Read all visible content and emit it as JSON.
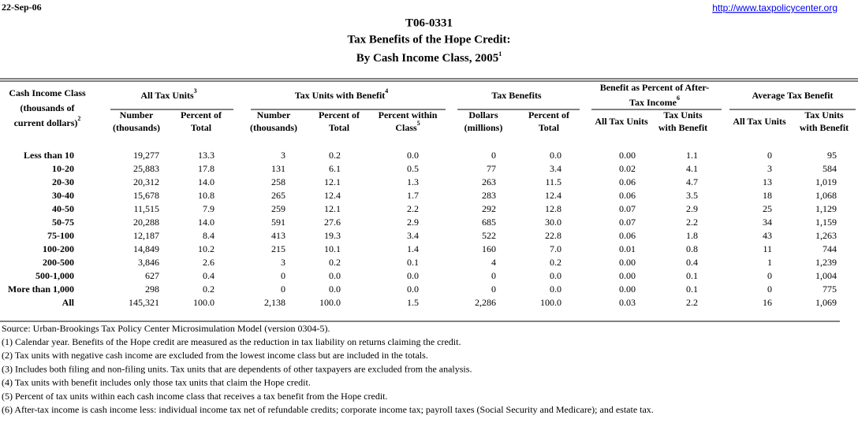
{
  "header": {
    "date": "22-Sep-06",
    "link": "http://www.taxpolicycenter.org",
    "code": "T06-0331",
    "title": "Tax Benefits of the Hope Credit:",
    "subtitle": "By Cash Income Class, 2005",
    "subtitle_note": "1"
  },
  "table": {
    "row_header": {
      "lines": [
        "Cash Income Class",
        "(thousands of",
        "current dollars)"
      ],
      "note": "2"
    },
    "groups": [
      {
        "lines": [
          "All Tax Units"
        ],
        "note": "3"
      },
      {
        "lines": [
          "Tax Units with Benefit"
        ],
        "note": "4"
      },
      {
        "lines": [
          "Tax Benefits"
        ]
      },
      {
        "lines": [
          "Benefit as Percent of After-",
          "Tax Income"
        ],
        "note": "6"
      },
      {
        "lines": [
          "Average Tax Benefit"
        ]
      }
    ],
    "columns": [
      {
        "lines": [
          "Number",
          "(thousands)"
        ]
      },
      {
        "lines": [
          "Percent of",
          "Total"
        ]
      },
      {
        "lines": [
          "Number",
          "(thousands)"
        ]
      },
      {
        "lines": [
          "Percent of",
          "Total"
        ]
      },
      {
        "lines": [
          "Percent within",
          "Class"
        ],
        "note": "5"
      },
      {
        "lines": [
          "Dollars",
          "(millions)"
        ]
      },
      {
        "lines": [
          "Percent of",
          "Total"
        ]
      },
      {
        "lines": [
          "All Tax Units"
        ]
      },
      {
        "lines": [
          "Tax Units",
          "with Benefit"
        ]
      },
      {
        "lines": [
          "All Tax Units"
        ]
      },
      {
        "lines": [
          "Tax Units",
          "with Benefit"
        ]
      }
    ],
    "rows": [
      [
        "Less than 10",
        "19,277",
        "13.3",
        "3",
        "0.2",
        "0.0",
        "0",
        "0.0",
        "0.00",
        "1.1",
        "0",
        "95"
      ],
      [
        "10-20",
        "25,883",
        "17.8",
        "131",
        "6.1",
        "0.5",
        "77",
        "3.4",
        "0.02",
        "4.1",
        "3",
        "584"
      ],
      [
        "20-30",
        "20,312",
        "14.0",
        "258",
        "12.1",
        "1.3",
        "263",
        "11.5",
        "0.06",
        "4.7",
        "13",
        "1,019"
      ],
      [
        "30-40",
        "15,678",
        "10.8",
        "265",
        "12.4",
        "1.7",
        "283",
        "12.4",
        "0.06",
        "3.5",
        "18",
        "1,068"
      ],
      [
        "40-50",
        "11,515",
        "7.9",
        "259",
        "12.1",
        "2.2",
        "292",
        "12.8",
        "0.07",
        "2.9",
        "25",
        "1,129"
      ],
      [
        "50-75",
        "20,288",
        "14.0",
        "591",
        "27.6",
        "2.9",
        "685",
        "30.0",
        "0.07",
        "2.2",
        "34",
        "1,159"
      ],
      [
        "75-100",
        "12,187",
        "8.4",
        "413",
        "19.3",
        "3.4",
        "522",
        "22.8",
        "0.06",
        "1.8",
        "43",
        "1,263"
      ],
      [
        "100-200",
        "14,849",
        "10.2",
        "215",
        "10.1",
        "1.4",
        "160",
        "7.0",
        "0.01",
        "0.8",
        "11",
        "744"
      ],
      [
        "200-500",
        "3,846",
        "2.6",
        "3",
        "0.2",
        "0.1",
        "4",
        "0.2",
        "0.00",
        "0.4",
        "1",
        "1,239"
      ],
      [
        "500-1,000",
        "627",
        "0.4",
        "0",
        "0.0",
        "0.0",
        "0",
        "0.0",
        "0.00",
        "0.1",
        "0",
        "1,004"
      ],
      [
        "More than 1,000",
        "298",
        "0.2",
        "0",
        "0.0",
        "0.0",
        "0",
        "0.0",
        "0.00",
        "0.1",
        "0",
        "775"
      ],
      [
        "All",
        "145,321",
        "100.0",
        "2,138",
        "100.0",
        "1.5",
        "2,286",
        "100.0",
        "0.03",
        "2.2",
        "16",
        "1,069"
      ]
    ]
  },
  "footnotes": [
    "Source: Urban-Brookings Tax Policy Center Microsimulation Model (version 0304-5).",
    "(1) Calendar year. Benefits of the Hope credit are measured as the reduction in tax liability on returns claiming the credit.",
    "(2) Tax units with negative cash income are excluded from the lowest income class but are included in the totals.",
    "(3) Includes both filing and non-filing units.  Tax units that are dependents of other taxpayers are excluded from the analysis.",
    "(4) Tax units with benefit includes only those tax units that claim the Hope credit.",
    "(5) Percent of tax units within each cash income class that receives a tax benefit from the Hope credit.",
    "(6) After-tax income is cash income less: individual income tax net of refundable credits; corporate income tax; payroll taxes (Social Security and Medicare); and estate tax."
  ]
}
